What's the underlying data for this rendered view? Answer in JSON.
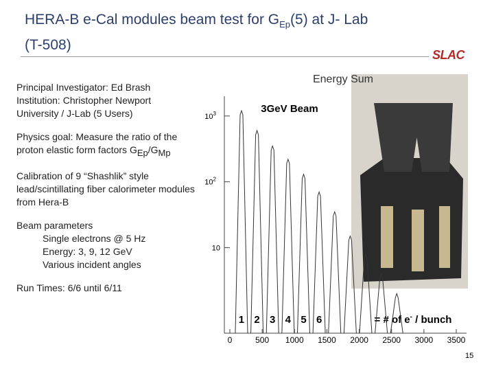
{
  "title": [
    "HERA-B e-Cal modules beam test for G",
    "Ep",
    "(5) at J- Lab",
    "(T-508)"
  ],
  "logo": "SLAC",
  "body": {
    "investigator": "Principal Investigator: Ed Brash",
    "institution": "Institution: Christopher Newport University / J-Lab (5 Users)",
    "goal": [
      "Physics goal: Measure the ratio of the proton elastic form factors ",
      "G",
      "Ep",
      "/G",
      "Mp"
    ],
    "calibration": "Calibration of 9 “Shashlik” style lead/scintillating fiber calorimeter modules from Hera-B",
    "beam_heading": "Beam parameters",
    "beam_items": [
      "Single electrons @ 5 Hz",
      "Energy: 3, 9, 12 GeV",
      "Various incident angles"
    ],
    "run_times": "Run Times:  6/6 until 6/11"
  },
  "plot": {
    "title": "Energy Sum",
    "annotation": "3GeV Beam",
    "legend": [
      "= # of e",
      "-",
      " / bunch"
    ],
    "log_y": true,
    "xlim": [
      0,
      3500
    ],
    "ylim": [
      0.5,
      2000
    ],
    "xticks": [
      0,
      500,
      1000,
      1500,
      2000,
      2500,
      3000,
      3500
    ],
    "yticks": [
      {
        "value": 1000,
        "label": "10",
        "exponent": "3"
      },
      {
        "value": 100,
        "label": "10",
        "exponent": "2"
      },
      10
    ],
    "peak_labels": [
      "1",
      "2",
      "3",
      "4",
      "5",
      "6"
    ],
    "peaks": {
      "x": [
        180,
        420,
        660,
        900,
        1140,
        1380,
        1620,
        1860,
        2100,
        2340,
        2580
      ],
      "values": [
        1200,
        600,
        350,
        220,
        130,
        70,
        35,
        15,
        8,
        4,
        2
      ]
    }
  },
  "page_number": "15"
}
